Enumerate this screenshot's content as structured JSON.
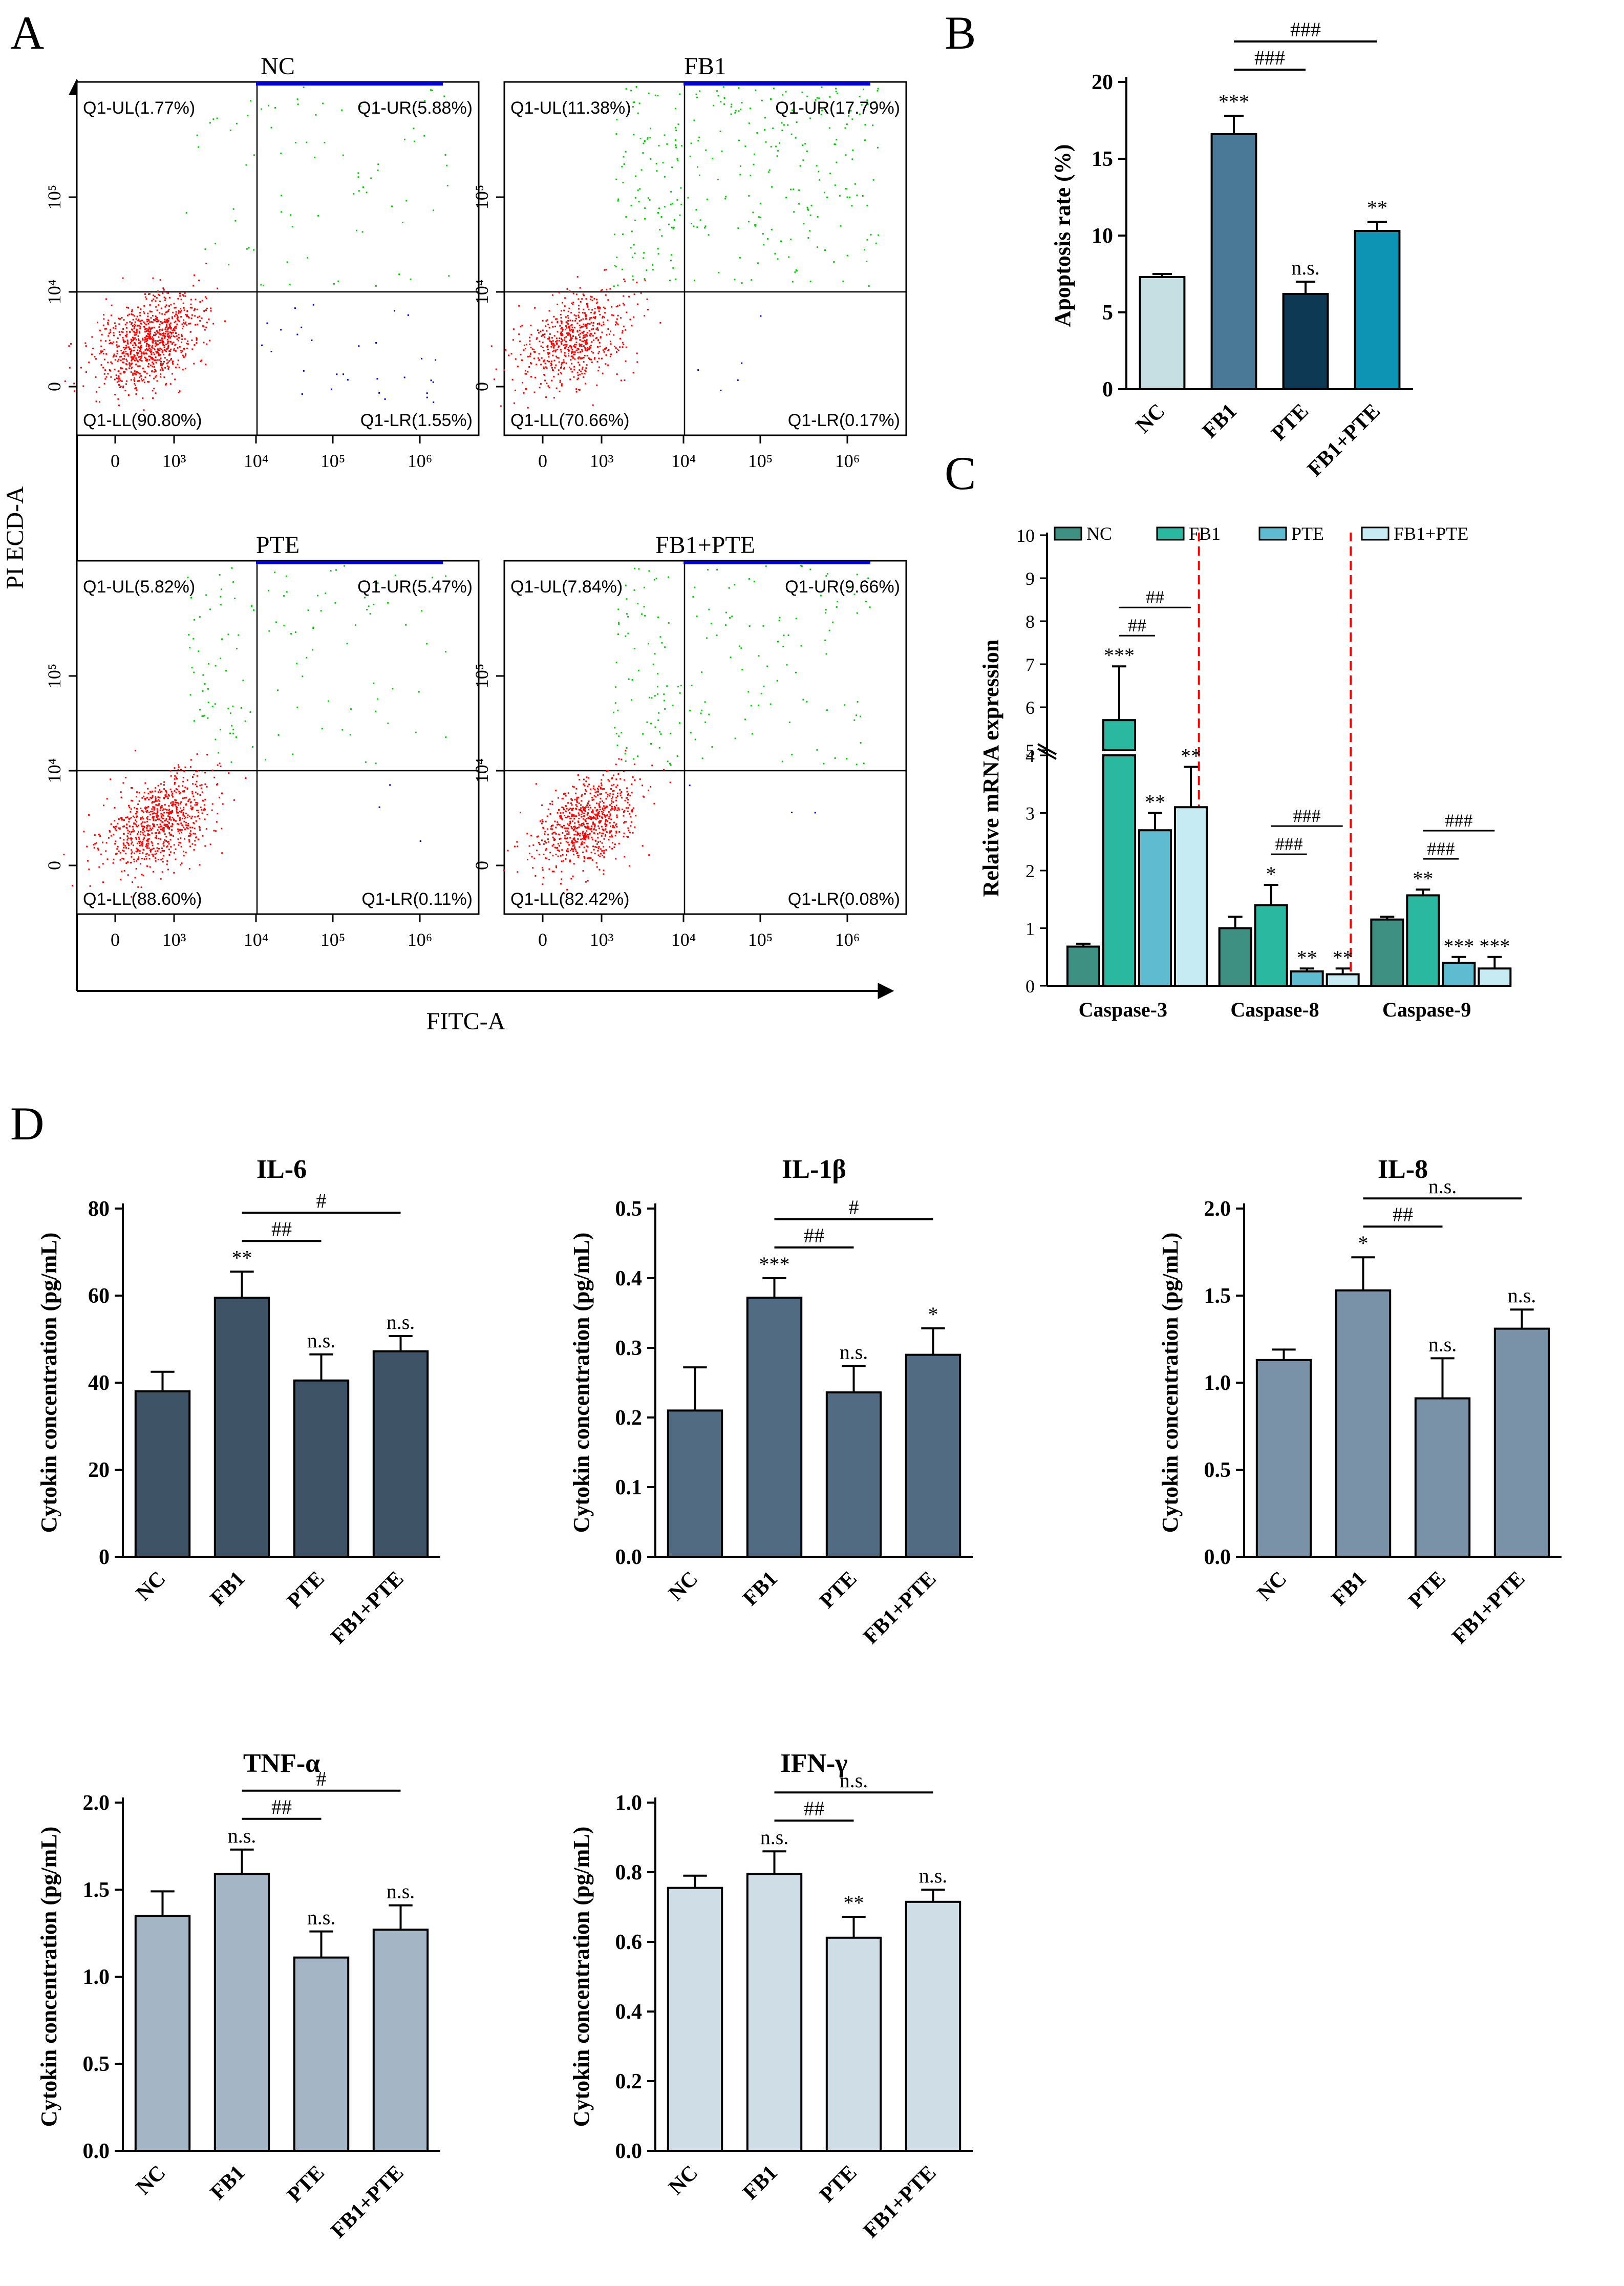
{
  "panel_labels": {
    "A": "A",
    "B": "B",
    "C": "C",
    "D": "D"
  },
  "colors": {
    "red": "#ff0000",
    "green": "#00cc00",
    "blue": "#0000dd",
    "B": [
      "#c5dfe3",
      "#4a7897",
      "#0e3955",
      "#0d93b3"
    ],
    "C": [
      "#3d9082",
      "#2ab9a0",
      "#5fbcd0",
      "#c6ebf2"
    ],
    "D": [
      "#3f5366",
      "#506b82",
      "#7a92a8",
      "#a4b6c6",
      "#cfdde6"
    ]
  },
  "panelA": {
    "xaxis_label": "FITC-A",
    "yaxis_label": "PI ECD-A",
    "xticks": [
      "0",
      "10³",
      "10⁴",
      "10⁵",
      "10⁶"
    ],
    "yticks": [
      "0",
      "10⁴",
      "10⁵"
    ],
    "plots": [
      {
        "title": "NC",
        "ul": "Q1-UL(1.77%)",
        "ur": "Q1-UR(5.88%)",
        "ll": "Q1-LL(90.80%)",
        "lr": "Q1-LR(1.55%)"
      },
      {
        "title": "FB1",
        "ul": "Q1-UL(11.38%)",
        "ur": "Q1-UR(17.79%)",
        "ll": "Q1-LL(70.66%)",
        "lr": "Q1-LR(0.17%)"
      },
      {
        "title": "PTE",
        "ul": "Q1-UL(5.82%)",
        "ur": "Q1-UR(5.47%)",
        "ll": "Q1-LL(88.60%)",
        "lr": "Q1-LR(0.11%)"
      },
      {
        "title": "FB1+PTE",
        "ul": "Q1-UL(7.84%)",
        "ur": "Q1-UR(9.66%)",
        "ll": "Q1-LL(82.42%)",
        "lr": "Q1-LR(0.08%)"
      }
    ]
  },
  "chart_data": [
    {
      "id": "B",
      "type": "bar",
      "categories": [
        "NC",
        "FB1",
        "PTE",
        "FB1+PTE"
      ],
      "values": [
        7.3,
        16.6,
        6.2,
        10.3
      ],
      "errors": [
        0.2,
        1.2,
        0.8,
        0.6
      ],
      "ylabel": "Apoptosis rate (%)",
      "ylim": [
        0,
        20
      ],
      "yticks": [
        "0",
        "5",
        "10",
        "15",
        "20"
      ],
      "significance": [
        "",
        "***",
        "n.s.",
        "**"
      ],
      "brackets": [
        {
          "label": "###",
          "from": 1,
          "to": 2
        },
        {
          "label": "###",
          "from": 1,
          "to": 3
        }
      ]
    },
    {
      "id": "C",
      "type": "bar",
      "groups": [
        "Caspase-3",
        "Caspase-8",
        "Caspase-9"
      ],
      "series": [
        {
          "name": "NC",
          "values": [
            0.68,
            1.0,
            1.15
          ],
          "errors": [
            0.05,
            0.2,
            0.05
          ]
        },
        {
          "name": "FB1",
          "values": [
            5.7,
            1.4,
            1.57
          ],
          "errors": [
            1.25,
            0.35,
            0.1
          ]
        },
        {
          "name": "PTE",
          "values": [
            2.7,
            0.25,
            0.4
          ],
          "errors": [
            0.3,
            0.05,
            0.1
          ]
        },
        {
          "name": "FB1+PTE",
          "values": [
            3.1,
            0.2,
            0.3
          ],
          "errors": [
            0.7,
            0.1,
            0.2
          ]
        }
      ],
      "ylabel": "Relative mRNA expression",
      "ylim": [
        0,
        10
      ],
      "axis_break": [
        4,
        5
      ],
      "yticks": [
        "0",
        "1",
        "2",
        "3",
        "4",
        "5",
        "6",
        "7",
        "8",
        "9",
        "10"
      ],
      "significance": [
        [
          "",
          "***",
          "**",
          "**"
        ],
        [
          "",
          "*",
          "**",
          "**"
        ],
        [
          "",
          "**",
          "***",
          "***"
        ]
      ],
      "brackets": [
        [
          "##",
          "##"
        ],
        [
          "###",
          "###"
        ],
        [
          "###",
          "###"
        ]
      ]
    },
    {
      "id": "IL-6",
      "type": "bar",
      "title": "IL-6",
      "categories": [
        "NC",
        "FB1",
        "PTE",
        "FB1+PTE"
      ],
      "values": [
        38,
        59.5,
        40.5,
        47.2
      ],
      "errors": [
        4.5,
        6,
        6,
        3.5
      ],
      "ylabel": "Cytokin concentration (pg/mL)",
      "ylim": [
        0,
        80
      ],
      "yticks": [
        "0",
        "20",
        "40",
        "60",
        "80"
      ],
      "significance": [
        "",
        "**",
        "n.s.",
        "n.s."
      ],
      "brackets": [
        {
          "label": "##",
          "from": 1,
          "to": 2
        },
        {
          "label": "#",
          "from": 1,
          "to": 3
        }
      ]
    },
    {
      "id": "IL-1b",
      "type": "bar",
      "title": "IL-1β",
      "categories": [
        "NC",
        "FB1",
        "PTE",
        "FB1+PTE"
      ],
      "values": [
        0.21,
        0.372,
        0.236,
        0.29
      ],
      "errors": [
        0.062,
        0.028,
        0.038,
        0.038
      ],
      "ylabel": "Cytokin concentration (pg/mL)",
      "ylim": [
        0,
        0.5
      ],
      "yticks": [
        "0.0",
        "0.1",
        "0.2",
        "0.3",
        "0.4",
        "0.5"
      ],
      "significance": [
        "",
        "***",
        "n.s.",
        "*"
      ],
      "brackets": [
        {
          "label": "##",
          "from": 1,
          "to": 2
        },
        {
          "label": "#",
          "from": 1,
          "to": 3
        }
      ]
    },
    {
      "id": "IL-8",
      "type": "bar",
      "title": "IL-8",
      "categories": [
        "NC",
        "FB1",
        "PTE",
        "FB1+PTE"
      ],
      "values": [
        1.13,
        1.53,
        0.91,
        1.31
      ],
      "errors": [
        0.06,
        0.19,
        0.23,
        0.11
      ],
      "ylabel": "Cytokin concentration (pg/mL)",
      "ylim": [
        0,
        2.0
      ],
      "yticks": [
        "0.0",
        "0.5",
        "1.0",
        "1.5",
        "2.0"
      ],
      "significance": [
        "",
        "*",
        "n.s.",
        "n.s."
      ],
      "brackets": [
        {
          "label": "##",
          "from": 1,
          "to": 2
        },
        {
          "label": "n.s.",
          "from": 1,
          "to": 3
        }
      ]
    },
    {
      "id": "TNF-a",
      "type": "bar",
      "title": "TNF-α",
      "categories": [
        "NC",
        "FB1",
        "PTE",
        "FB1+PTE"
      ],
      "values": [
        1.35,
        1.59,
        1.11,
        1.27
      ],
      "errors": [
        0.14,
        0.14,
        0.15,
        0.14
      ],
      "ylabel": "Cytokin concentration (pg/mL)",
      "ylim": [
        0,
        2.0
      ],
      "yticks": [
        "0.0",
        "0.5",
        "1.0",
        "1.5",
        "2.0"
      ],
      "significance": [
        "",
        "n.s.",
        "n.s.",
        "n.s."
      ],
      "brackets": [
        {
          "label": "##",
          "from": 1,
          "to": 2
        },
        {
          "label": "#",
          "from": 1,
          "to": 3
        }
      ]
    },
    {
      "id": "IFN-g",
      "type": "bar",
      "title": "IFN-γ",
      "categories": [
        "NC",
        "FB1",
        "PTE",
        "FB1+PTE"
      ],
      "values": [
        0.755,
        0.795,
        0.612,
        0.715
      ],
      "errors": [
        0.035,
        0.065,
        0.06,
        0.035
      ],
      "ylabel": "Cytokin concentration (pg/mL)",
      "ylim": [
        0,
        1.0
      ],
      "yticks": [
        "0.0",
        "0.2",
        "0.4",
        "0.6",
        "0.8",
        "1.0"
      ],
      "significance": [
        "",
        "n.s.",
        "**",
        "n.s."
      ],
      "brackets": [
        {
          "label": "##",
          "from": 1,
          "to": 2
        },
        {
          "label": "n.s.",
          "from": 1,
          "to": 3
        }
      ]
    }
  ]
}
